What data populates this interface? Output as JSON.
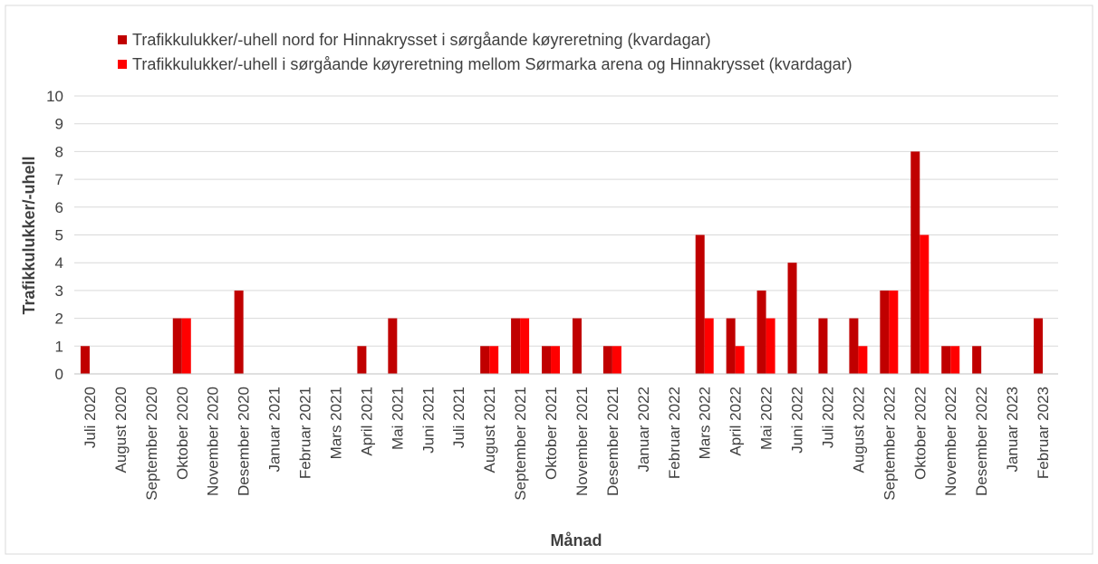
{
  "chart_data": {
    "type": "bar",
    "xlabel": "Månad",
    "ylabel": "Trafikkulukker/-uhell",
    "categories": [
      "Juli 2020",
      "August 2020",
      "September 2020",
      "Oktober 2020",
      "November 2020",
      "Desember 2020",
      "Januar 2021",
      "Februar 2021",
      "Mars 2021",
      "April 2021",
      "Mai 2021",
      "Juni 2021",
      "Juli 2021",
      "August 2021",
      "September 2021",
      "Oktober 2021",
      "November 2021",
      "Desember 2021",
      "Januar 2022",
      "Februar 2022",
      "Mars 2022",
      "April 2022",
      "Mai 2022",
      "Juni 2022",
      "Juli 2022",
      "August 2022",
      "September 2022",
      "Oktober 2022",
      "November 2022",
      "Desember 2022",
      "Januar 2023",
      "Februar 2023"
    ],
    "series": [
      {
        "name": "Trafikkulukker/-uhell nord for Hinnakrysset i sørgåande køyreretning (kvardagar)",
        "color": "#c00000",
        "values": [
          1,
          0,
          0,
          2,
          0,
          3,
          0,
          0,
          0,
          1,
          2,
          0,
          0,
          1,
          2,
          1,
          2,
          1,
          0,
          0,
          5,
          2,
          3,
          4,
          2,
          2,
          3,
          8,
          1,
          1,
          0,
          2
        ]
      },
      {
        "name": "Trafikkulukker/-uhell i sørgåande køyreretning mellom Sørmarka arena og Hinnakrysset (kvardagar)",
        "color": "#ff0000",
        "values": [
          0,
          0,
          0,
          2,
          0,
          0,
          0,
          0,
          0,
          0,
          0,
          0,
          0,
          1,
          2,
          1,
          0,
          1,
          0,
          0,
          2,
          1,
          2,
          0,
          0,
          1,
          3,
          5,
          1,
          0,
          0,
          0
        ]
      }
    ],
    "ylim": [
      0,
      10
    ],
    "yticks": [
      0,
      1,
      2,
      3,
      4,
      5,
      6,
      7,
      8,
      9,
      10
    ],
    "grid": true
  }
}
